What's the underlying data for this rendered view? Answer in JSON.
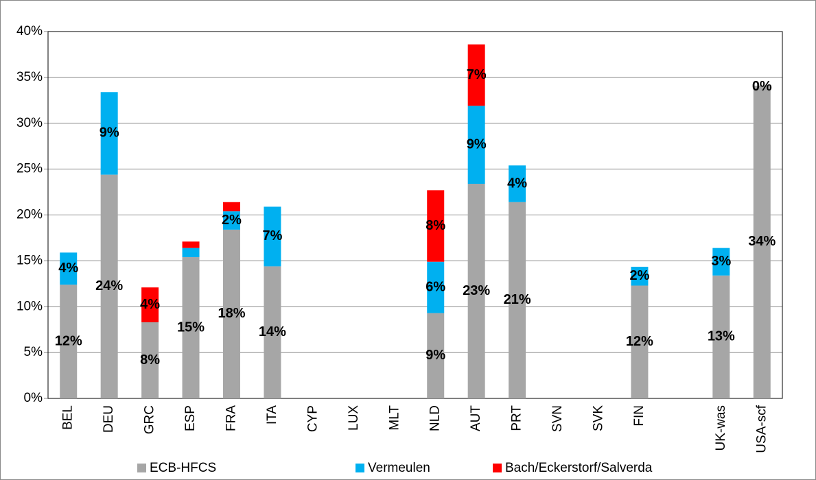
{
  "chart_data": {
    "type": "stacked_bar",
    "categories": [
      "BEL",
      "DEU",
      "GRC",
      "ESP",
      "FRA",
      "ITA",
      "CYP",
      "LUX",
      "MLT",
      "NLD",
      "AUT",
      "PRT",
      "SVN",
      "SVK",
      "FIN",
      null,
      "UK-was",
      "USA-scf"
    ],
    "series": [
      {
        "name": "ECB-HFCS",
        "color": "#a6a6a6",
        "values": [
          12.4,
          24.4,
          8.3,
          15.4,
          18.4,
          14.4,
          null,
          null,
          null,
          9.3,
          23.4,
          21.4,
          null,
          null,
          12.3,
          null,
          13.4,
          34.1
        ],
        "value_labels": [
          "12%",
          "24%",
          "8%",
          "15%",
          "18%",
          "14%",
          null,
          null,
          null,
          "9%",
          "23%",
          "21%",
          null,
          null,
          "12%",
          null,
          "13%",
          "34%"
        ]
      },
      {
        "name": "Vermeulen",
        "color": "#00b0f0",
        "values": [
          3.5,
          9.0,
          null,
          1.0,
          2.0,
          6.5,
          null,
          null,
          null,
          5.6,
          8.5,
          4.0,
          null,
          null,
          2.05,
          null,
          3.0,
          0
        ],
        "value_labels": [
          "4%",
          "9%",
          null,
          null,
          "2%",
          "7%",
          null,
          null,
          null,
          "6%",
          "9%",
          "4%",
          null,
          null,
          "2%",
          null,
          "3%",
          "0%"
        ]
      },
      {
        "name": "Bach/Eckerstorf/Salverda",
        "color": "#ff0000",
        "values": [
          null,
          null,
          3.8,
          0.7,
          1.0,
          null,
          null,
          null,
          null,
          7.8,
          6.7,
          null,
          null,
          null,
          null,
          null,
          null,
          null
        ],
        "value_labels": [
          null,
          null,
          "4%",
          null,
          null,
          null,
          null,
          null,
          null,
          "8%",
          "7%",
          null,
          null,
          null,
          null,
          null,
          null,
          null
        ]
      }
    ],
    "ylim": [
      0,
      40
    ],
    "yticks": [
      {
        "value": 0,
        "label": "0%"
      },
      {
        "value": 5,
        "label": "5%"
      },
      {
        "value": 10,
        "label": "10%"
      },
      {
        "value": 15,
        "label": "15%"
      },
      {
        "value": 20,
        "label": "20%"
      },
      {
        "value": 25,
        "label": "25%"
      },
      {
        "value": 30,
        "label": "30%"
      },
      {
        "value": 35,
        "label": "35%"
      },
      {
        "value": 40,
        "label": "40%"
      }
    ],
    "grid": true
  }
}
